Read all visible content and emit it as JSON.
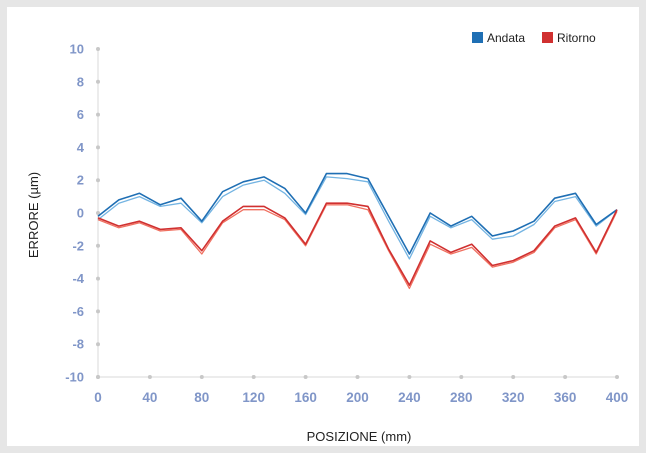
{
  "chart_data": {
    "type": "line",
    "title": "",
    "xlabel": "POSIZIONE (mm)",
    "ylabel": "ERRORE (µm)",
    "xlim": [
      0,
      400
    ],
    "ylim": [
      -10,
      10
    ],
    "x_ticks": [
      "0",
      "40",
      "80",
      "120",
      "160",
      "200",
      "240",
      "280",
      "320",
      "360",
      "400"
    ],
    "y_ticks": [
      "10",
      "8",
      "6",
      "4",
      "2",
      "0",
      "-2",
      "-4",
      "-6",
      "-8",
      "-10"
    ],
    "grid": false,
    "legend_position": "top-right",
    "x": [
      0,
      16,
      32,
      48,
      64,
      80,
      96,
      112,
      128,
      144,
      160,
      176,
      192,
      208,
      224,
      240,
      256,
      272,
      288,
      304,
      320,
      336,
      352,
      368,
      384,
      400
    ],
    "series": [
      {
        "name": "Andata",
        "color": "#1f6fb4",
        "light_color": "#74b4e2",
        "values": [
          -0.2,
          0.8,
          1.2,
          0.5,
          0.9,
          -0.5,
          1.3,
          1.9,
          2.2,
          1.5,
          0.0,
          2.4,
          2.4,
          2.1,
          -0.2,
          -2.5,
          0.0,
          -0.8,
          -0.2,
          -1.4,
          -1.1,
          -0.5,
          0.9,
          1.2,
          -0.7,
          0.2
        ],
        "values_2": [
          -0.4,
          0.6,
          1.0,
          0.4,
          0.6,
          -0.6,
          1.0,
          1.7,
          2.0,
          1.2,
          -0.1,
          2.2,
          2.1,
          1.9,
          -0.5,
          -2.8,
          -0.2,
          -0.9,
          -0.4,
          -1.6,
          -1.4,
          -0.7,
          0.7,
          1.0,
          -0.8,
          0.2
        ]
      },
      {
        "name": "Ritorno",
        "color": "#d03030",
        "light_color": "#f07060",
        "values": [
          -0.3,
          -0.8,
          -0.5,
          -1.0,
          -0.9,
          -2.3,
          -0.5,
          0.4,
          0.4,
          -0.3,
          -1.9,
          0.6,
          0.6,
          0.4,
          -2.2,
          -4.4,
          -1.7,
          -2.4,
          -1.9,
          -3.2,
          -2.9,
          -2.3,
          -0.8,
          -0.3,
          -2.4,
          0.2
        ],
        "values_2": [
          -0.4,
          -0.9,
          -0.6,
          -1.1,
          -1.0,
          -2.5,
          -0.6,
          0.2,
          0.2,
          -0.4,
          -2.0,
          0.5,
          0.5,
          0.2,
          -2.3,
          -4.6,
          -1.9,
          -2.5,
          -2.1,
          -3.3,
          -3.0,
          -2.4,
          -0.9,
          -0.4,
          -2.5,
          0.1
        ]
      }
    ]
  }
}
